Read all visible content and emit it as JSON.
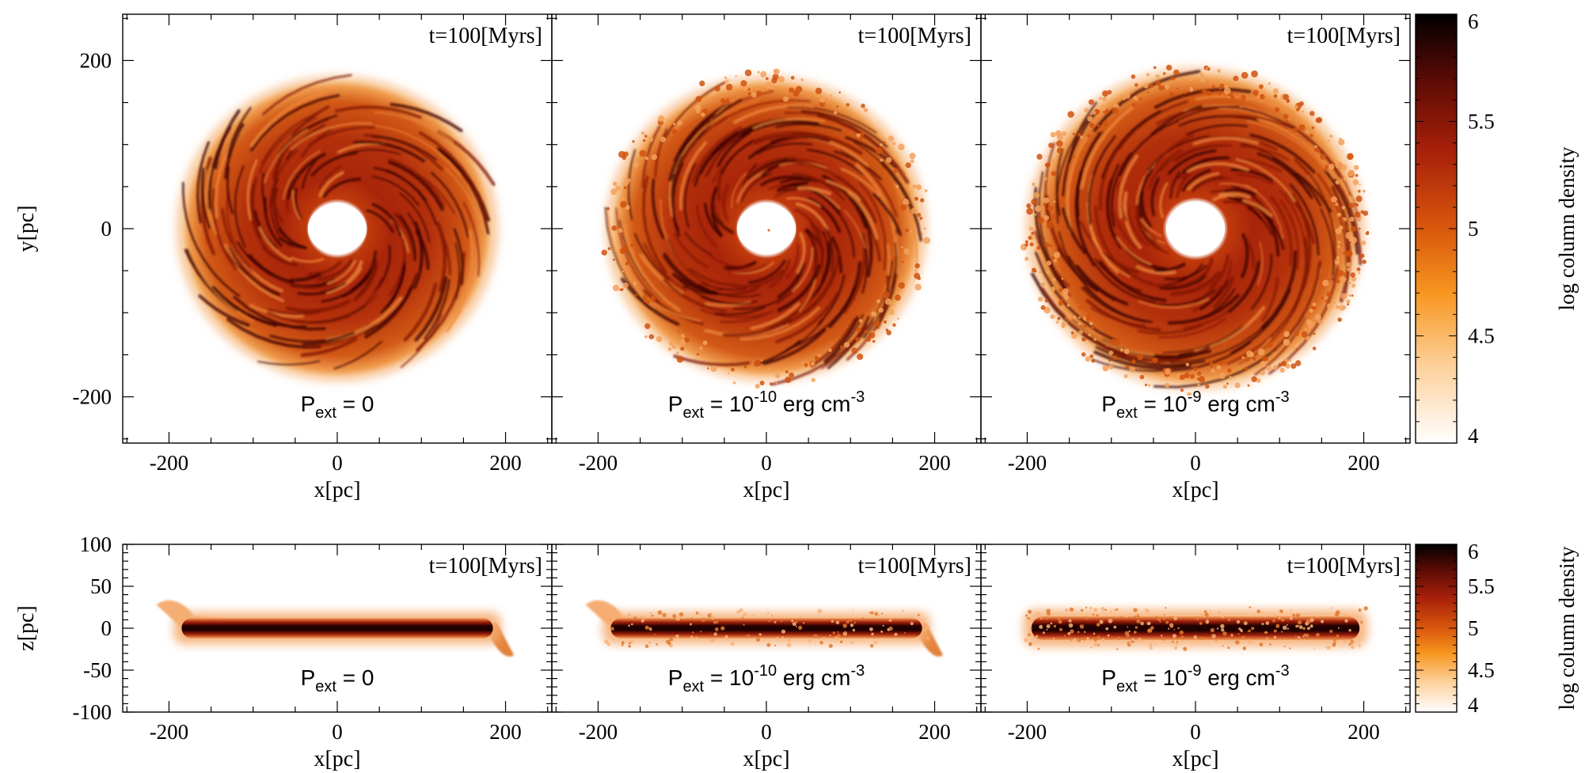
{
  "colors": {
    "cmap_low": "#ffffff",
    "cmap_q1": "#fdd09a",
    "cmap_q2": "#f7961f",
    "cmap_mid": "#d9570c",
    "cmap_q3": "#a8200a",
    "cmap_q4": "#5a0b05",
    "cmap_high": "#000000"
  },
  "chart_data": [
    {
      "type": "heatmap",
      "view": "face-on",
      "panel": "top-left",
      "time_label": "t=100[Myrs]",
      "pressure_label": {
        "base": "P",
        "sub": "ext",
        "text": " = 0"
      },
      "xlabel": "x[pc]",
      "ylabel": "y[pc]",
      "xlim": [
        -255,
        255
      ],
      "ylim": [
        -255,
        255
      ],
      "xticks": [
        -200,
        0,
        200
      ],
      "yticks": [
        -200,
        0,
        200
      ],
      "disk": {
        "inner_radius_pc": 35,
        "outer_radius_pc": 185,
        "edge_smooth": true
      }
    },
    {
      "type": "heatmap",
      "view": "face-on",
      "panel": "top-middle",
      "time_label": "t=100[Myrs]",
      "pressure_label": {
        "base": "P",
        "sub": "ext",
        "mid": " = 10",
        "sup": "-10",
        "unit": " erg cm",
        "unit_sup": "-3"
      },
      "xlabel": "x[pc]",
      "xlim": [
        -255,
        255
      ],
      "ylim": [
        -255,
        255
      ],
      "xticks": [
        -200,
        0,
        200
      ],
      "disk": {
        "inner_radius_pc": 35,
        "outer_radius_pc": 185,
        "edge_smooth": false
      }
    },
    {
      "type": "heatmap",
      "view": "face-on",
      "panel": "top-right",
      "time_label": "t=100[Myrs]",
      "pressure_label": {
        "base": "P",
        "sub": "ext",
        "mid": " = 10",
        "sup": "-9",
        "unit": " erg cm",
        "unit_sup": "-3"
      },
      "xlabel": "x[pc]",
      "xlim": [
        -255,
        255
      ],
      "ylim": [
        -255,
        255
      ],
      "xticks": [
        -200,
        0,
        200
      ],
      "disk": {
        "inner_radius_pc": 35,
        "outer_radius_pc": 195,
        "edge_smooth": false
      }
    },
    {
      "type": "heatmap",
      "view": "edge-on",
      "panel": "bottom-left",
      "time_label": "t=100[Myrs]",
      "pressure_label": {
        "base": "P",
        "sub": "ext",
        "text": " = 0"
      },
      "xlabel": "x[pc]",
      "ylabel": "z[pc]",
      "xlim": [
        -255,
        255
      ],
      "ylim": [
        -100,
        100
      ],
      "xticks": [
        -200,
        0,
        200
      ],
      "yticks": [
        100,
        50,
        0,
        -50,
        -100
      ],
      "yticklabels": [
        "100",
        "50",
        "0",
        "-50",
        "-100"
      ],
      "disk": {
        "x_range_pc": [
          -185,
          185
        ],
        "thickness_pc": 12,
        "warp": true
      }
    },
    {
      "type": "heatmap",
      "view": "edge-on",
      "panel": "bottom-middle",
      "time_label": "t=100[Myrs]",
      "pressure_label": {
        "base": "P",
        "sub": "ext",
        "mid": " = 10",
        "sup": "-10",
        "unit": " erg cm",
        "unit_sup": "-3"
      },
      "xlabel": "x[pc]",
      "xlim": [
        -255,
        255
      ],
      "ylim": [
        -100,
        100
      ],
      "xticks": [
        -200,
        0,
        200
      ],
      "disk": {
        "x_range_pc": [
          -185,
          185
        ],
        "thickness_pc": 12,
        "warp": true
      }
    },
    {
      "type": "heatmap",
      "view": "edge-on",
      "panel": "bottom-right",
      "time_label": "t=100[Myrs]",
      "pressure_label": {
        "base": "P",
        "sub": "ext",
        "mid": " = 10",
        "sup": "-9",
        "unit": " erg cm",
        "unit_sup": "-3"
      },
      "xlabel": "x[pc]",
      "xlim": [
        -255,
        255
      ],
      "ylim": [
        -100,
        100
      ],
      "xticks": [
        -200,
        0,
        200
      ],
      "disk": {
        "x_range_pc": [
          -195,
          195
        ],
        "thickness_pc": 14,
        "warp": false
      }
    }
  ],
  "colorbars": [
    {
      "label": "log column density",
      "range": [
        4,
        6
      ],
      "ticks": [
        4,
        4.5,
        5,
        5.5,
        6
      ],
      "ticklabels": [
        "4",
        "4.5",
        "5",
        "5.5",
        "6"
      ]
    },
    {
      "label": "log column density",
      "range": [
        4,
        6
      ],
      "ticks": [
        4,
        4.5,
        5,
        5.5,
        6
      ],
      "ticklabels": [
        "4",
        "4.5",
        "5",
        "5.5",
        "6"
      ]
    }
  ]
}
